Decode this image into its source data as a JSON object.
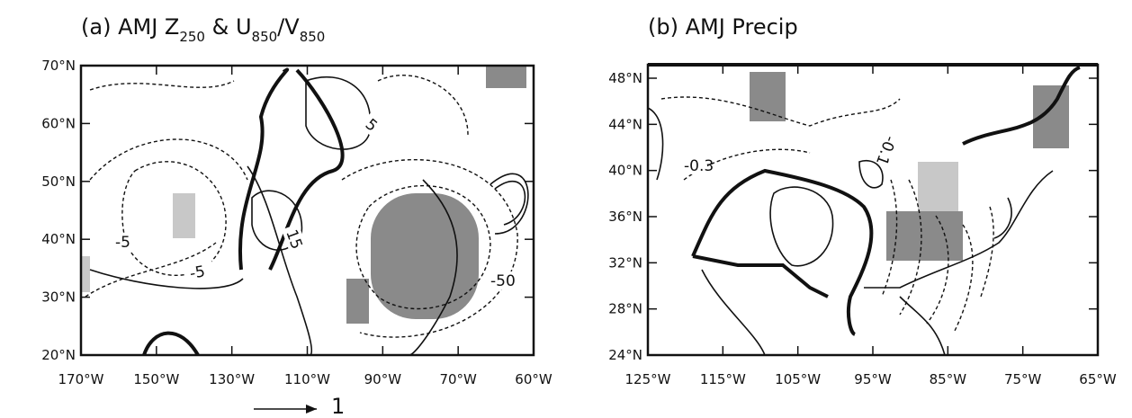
{
  "panels": [
    {
      "title": "(a) AMJ Z",
      "title_sub1": "250",
      "title_mid": " & U",
      "title_sub2": "850",
      "title_sep": "/V",
      "title_sub3": "850",
      "yticks": [
        "70°N",
        "60°N",
        "50°N",
        "40°N",
        "30°N",
        "20°N"
      ],
      "xticks": [
        "170°W",
        "150°W",
        "130°W",
        "110°W",
        "90°W",
        "70°W",
        "60°W"
      ],
      "contour_labels": [
        "-5",
        "-5",
        "5",
        "15",
        "-50"
      ],
      "reference_vector": "1"
    },
    {
      "title": "(b) AMJ Precip",
      "yticks": [
        "48°N",
        "44°N",
        "40°N",
        "36°N",
        "32°N",
        "28°N",
        "24°N"
      ],
      "xticks": [
        "125°W",
        "115°W",
        "105°W",
        "95°W",
        "85°W",
        "75°W",
        "65°W"
      ],
      "contour_labels": [
        "-0.3",
        "-0.1"
      ]
    }
  ]
}
